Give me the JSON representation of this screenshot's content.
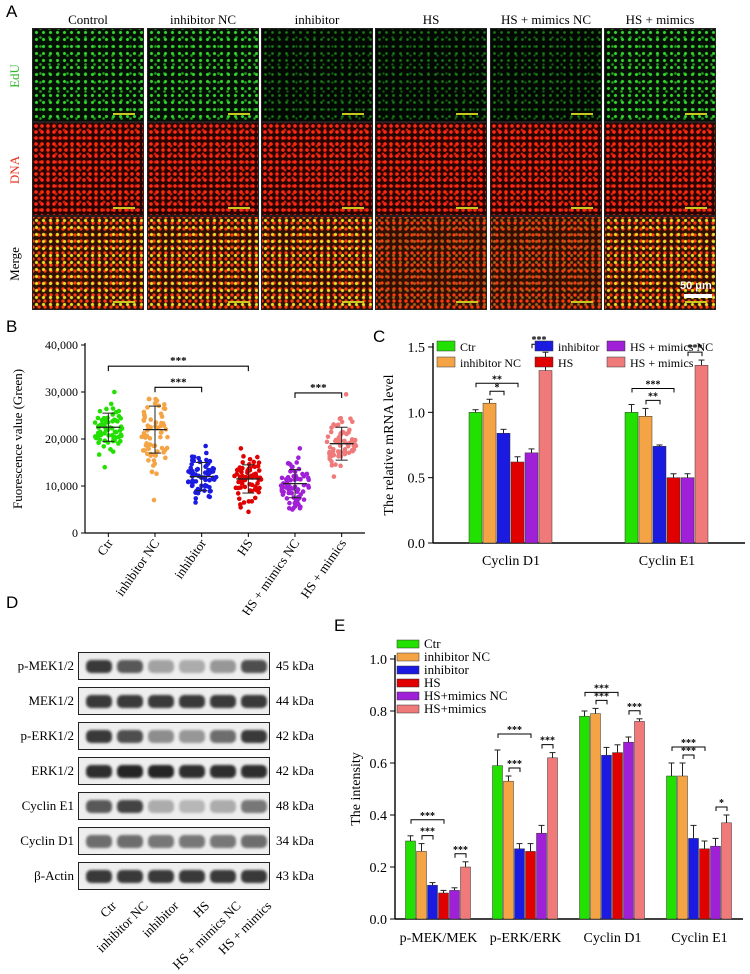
{
  "panelA": {
    "letter": "A",
    "columns": [
      "Control",
      "inhibitor NC",
      "inhibitor",
      "HS",
      "HS + mimics NC",
      "HS + mimics"
    ],
    "rows": [
      {
        "label": "EdU",
        "color": "#2fb52a"
      },
      {
        "label": "DNA",
        "color": "#e8321e"
      },
      {
        "label": "Merge",
        "color": "#000000"
      }
    ],
    "scale_bar": "50 μm"
  },
  "panelB": {
    "letter": "B",
    "chart_data": {
      "type": "scatter",
      "ylabel": "Fuorescence value (Green)",
      "ylim": [
        0,
        40000
      ],
      "yticks": [
        "0",
        "10,000",
        "20,000",
        "30,000",
        "40,000"
      ],
      "categories": [
        "Ctr",
        "inhibitor NC",
        "inhibitor",
        "HS",
        "HS + mimics NC",
        "HS + mimics"
      ],
      "colors": [
        "#22e000",
        "#f5a445",
        "#1a1ae0",
        "#e00000",
        "#a020d8",
        "#f07a7a"
      ],
      "mean": [
        22500,
        22000,
        12000,
        11500,
        10500,
        19000
      ],
      "sd": [
        3000,
        5000,
        3000,
        3000,
        3000,
        3500
      ],
      "range": [
        [
          14000,
          30000
        ],
        [
          7000,
          28500
        ],
        [
          6500,
          18500
        ],
        [
          4500,
          18000
        ],
        [
          5000,
          18000
        ],
        [
          12000,
          29500
        ]
      ],
      "significance": [
        {
          "from": "Ctr",
          "to": "HS",
          "label": "***"
        },
        {
          "from": "inhibitor NC",
          "to": "inhibitor",
          "label": "***"
        },
        {
          "from": "HS + mimics NC",
          "to": "HS + mimics",
          "label": "***"
        }
      ]
    }
  },
  "panelC": {
    "letter": "C",
    "chart_data": {
      "type": "bar",
      "ylabel": "The relative mRNA level",
      "ylim": [
        0,
        1.5
      ],
      "yticks": [
        "0.0",
        "0.5",
        "1.0",
        "1.5"
      ],
      "categories": [
        "Cyclin D1",
        "Cyclin E1"
      ],
      "legend": [
        "Ctr",
        "inhibitor NC",
        "inhibitor",
        "HS",
        "HS + mimics NC",
        "HS + mimics"
      ],
      "colors": [
        "#22e000",
        "#f5a445",
        "#1a1ae0",
        "#e00000",
        "#a020d8",
        "#f07a7a"
      ],
      "series": [
        {
          "name": "Ctr",
          "values": [
            1.0,
            1.0
          ],
          "err": [
            0.02,
            0.06
          ]
        },
        {
          "name": "inhibitor NC",
          "values": [
            1.07,
            0.97
          ],
          "err": [
            0.03,
            0.06
          ]
        },
        {
          "name": "inhibitor",
          "values": [
            0.84,
            0.74
          ],
          "err": [
            0.03,
            0.01
          ]
        },
        {
          "name": "HS",
          "values": [
            0.62,
            0.5
          ],
          "err": [
            0.04,
            0.03
          ]
        },
        {
          "name": "HS + mimics NC",
          "values": [
            0.69,
            0.5
          ],
          "err": [
            0.03,
            0.03
          ]
        },
        {
          "name": "HS + mimics",
          "values": [
            1.32,
            1.36
          ],
          "err": [
            0.14,
            0.04
          ]
        }
      ],
      "significance": [
        {
          "group": 0,
          "from": 0,
          "to": 3,
          "label": "**"
        },
        {
          "group": 0,
          "from": 1,
          "to": 2,
          "label": "*"
        },
        {
          "group": 0,
          "from": 4,
          "to": 5,
          "label": "***"
        },
        {
          "group": 1,
          "from": 0,
          "to": 3,
          "label": "***"
        },
        {
          "group": 1,
          "from": 1,
          "to": 2,
          "label": "**"
        },
        {
          "group": 1,
          "from": 4,
          "to": 5,
          "label": "***"
        }
      ]
    }
  },
  "panelD": {
    "letter": "D",
    "blots": [
      {
        "label": "p-MEK1/2",
        "kda": "45 kDa",
        "intensity": [
          0.85,
          0.7,
          0.35,
          0.3,
          0.4,
          0.75
        ]
      },
      {
        "label": "MEK1/2",
        "kda": "44 kDa",
        "intensity": [
          0.85,
          0.85,
          0.85,
          0.85,
          0.85,
          0.85
        ]
      },
      {
        "label": "p-ERK1/2",
        "kda": "42 kDa",
        "intensity": [
          0.85,
          0.75,
          0.45,
          0.4,
          0.6,
          0.85
        ]
      },
      {
        "label": "ERK1/2",
        "kda": "42 kDa",
        "intensity": [
          0.9,
          0.95,
          0.95,
          0.9,
          0.9,
          0.9
        ]
      },
      {
        "label": "Cyclin E1",
        "kda": "48 kDa",
        "intensity": [
          0.7,
          0.8,
          0.3,
          0.25,
          0.3,
          0.55
        ]
      },
      {
        "label": "Cyclin D1",
        "kda": "34 kDa",
        "intensity": [
          0.6,
          0.6,
          0.55,
          0.55,
          0.55,
          0.6
        ]
      },
      {
        "label": "β-Actin",
        "kda": "43 kDa",
        "intensity": [
          0.85,
          0.85,
          0.85,
          0.85,
          0.85,
          0.85
        ]
      }
    ],
    "lanes": [
      "Ctr",
      "inhibitor NC",
      "inhibitor",
      "HS",
      "HS + mimics NC",
      "HS + mimics"
    ]
  },
  "panelE": {
    "letter": "E",
    "chart_data": {
      "type": "bar",
      "ylabel": "The intensity",
      "ylim": [
        0,
        1.0
      ],
      "yticks": [
        "0.0",
        "0.2",
        "0.4",
        "0.6",
        "0.8",
        "1.0"
      ],
      "categories": [
        "p-MEK/MEK",
        "p-ERK/ERK",
        "Cyclin D1",
        "Cyclin E1"
      ],
      "legend": [
        "Ctr",
        "inhibitor NC",
        "inhibitor",
        "HS",
        "HS+mimics NC",
        "HS+mimics"
      ],
      "colors": [
        "#22e000",
        "#f5a445",
        "#1a1ae0",
        "#e00000",
        "#a020d8",
        "#f07a7a"
      ],
      "series": [
        {
          "name": "Ctr",
          "values": [
            0.3,
            0.59,
            0.78,
            0.55
          ],
          "err": [
            0.02,
            0.06,
            0.02,
            0.05
          ]
        },
        {
          "name": "inhibitor NC",
          "values": [
            0.26,
            0.53,
            0.79,
            0.55
          ],
          "err": [
            0.03,
            0.02,
            0.02,
            0.05
          ]
        },
        {
          "name": "inhibitor",
          "values": [
            0.13,
            0.27,
            0.63,
            0.31
          ],
          "err": [
            0.01,
            0.02,
            0.03,
            0.05
          ]
        },
        {
          "name": "HS",
          "values": [
            0.1,
            0.26,
            0.64,
            0.27
          ],
          "err": [
            0.01,
            0.03,
            0.03,
            0.03
          ]
        },
        {
          "name": "HS+mimics NC",
          "values": [
            0.11,
            0.33,
            0.68,
            0.28
          ],
          "err": [
            0.01,
            0.03,
            0.02,
            0.03
          ]
        },
        {
          "name": "HS+mimics",
          "values": [
            0.2,
            0.62,
            0.76,
            0.37
          ],
          "err": [
            0.02,
            0.02,
            0.01,
            0.03
          ]
        }
      ],
      "significance": [
        {
          "group": 0,
          "from": 0,
          "to": 3,
          "label": "***"
        },
        {
          "group": 0,
          "from": 1,
          "to": 2,
          "label": "***"
        },
        {
          "group": 0,
          "from": 4,
          "to": 5,
          "label": "***"
        },
        {
          "group": 1,
          "from": 0,
          "to": 3,
          "label": "***"
        },
        {
          "group": 1,
          "from": 1,
          "to": 2,
          "label": "***"
        },
        {
          "group": 1,
          "from": 4,
          "to": 5,
          "label": "***"
        },
        {
          "group": 2,
          "from": 0,
          "to": 3,
          "label": "***"
        },
        {
          "group": 2,
          "from": 1,
          "to": 2,
          "label": "***"
        },
        {
          "group": 2,
          "from": 4,
          "to": 5,
          "label": "***"
        },
        {
          "group": 3,
          "from": 0,
          "to": 3,
          "label": "***"
        },
        {
          "group": 3,
          "from": 1,
          "to": 2,
          "label": "***"
        },
        {
          "group": 3,
          "from": 4,
          "to": 5,
          "label": "*"
        }
      ]
    }
  }
}
